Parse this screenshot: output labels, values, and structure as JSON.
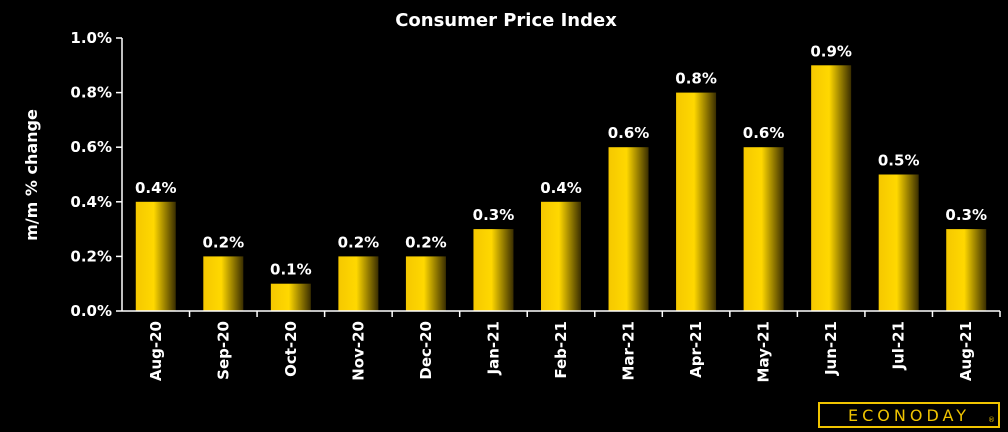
{
  "chart_data": {
    "type": "bar",
    "title": "Consumer Price Index",
    "xlabel": "",
    "ylabel": "m/m % change",
    "categories": [
      "Aug-20",
      "Sep-20",
      "Oct-20",
      "Nov-20",
      "Dec-20",
      "Jan-21",
      "Feb-21",
      "Mar-21",
      "Apr-21",
      "May-21",
      "Jun-21",
      "Jul-21",
      "Aug-21"
    ],
    "values": [
      0.4,
      0.2,
      0.1,
      0.2,
      0.2,
      0.3,
      0.4,
      0.6,
      0.8,
      0.6,
      0.9,
      0.5,
      0.3
    ],
    "data_labels": [
      "0.4%",
      "0.2%",
      "0.1%",
      "0.2%",
      "0.2%",
      "0.3%",
      "0.4%",
      "0.6%",
      "0.8%",
      "0.6%",
      "0.9%",
      "0.5%",
      "0.3%"
    ],
    "ylim": [
      0,
      1.0
    ],
    "yticks": [
      0.0,
      0.2,
      0.4,
      0.6,
      0.8,
      1.0
    ],
    "ytick_labels": [
      "0.0%",
      "0.2%",
      "0.4%",
      "0.6%",
      "0.8%",
      "1.0%"
    ],
    "grid": false,
    "legend": "none"
  },
  "colors": {
    "background": "#000000",
    "bar_light": "#ffd700",
    "bar_dark": "#3a2e00",
    "axis": "#ffffff",
    "text": "#ffffff",
    "logo": "#f0c400"
  },
  "logo": {
    "text": "ECONODAY",
    "mark": "®"
  }
}
